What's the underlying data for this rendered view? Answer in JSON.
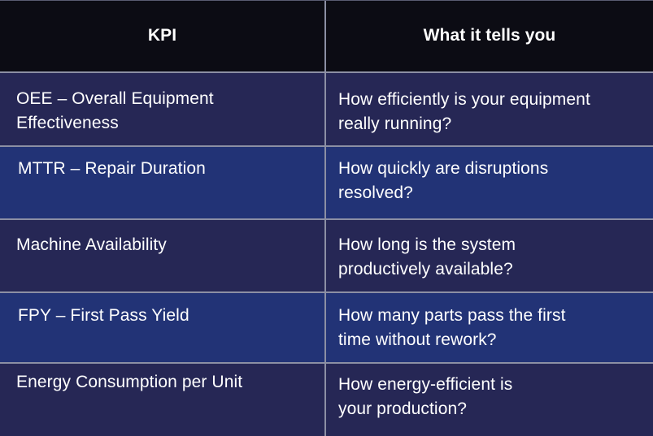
{
  "table": {
    "headers": [
      "KPI",
      "What it tells you"
    ],
    "rows": [
      [
        "OEE – Overall Equipment\nEffectiveness",
        "How efficiently is your equipment\nreally running?"
      ],
      [
        "MTTR – Repair Duration",
        "How quickly are disruptions\nresolved?"
      ],
      [
        "Machine Availability",
        "How long is the system\nproductively available?"
      ],
      [
        "FPY – First Pass Yield",
        "How many parts pass the first\ntime without rework?"
      ],
      [
        "Energy Consumption per Unit",
        "How energy-efficient is\nyour production?"
      ]
    ]
  },
  "colors": {
    "header_bg": "#0c0c14",
    "row_dark": "#262755",
    "row_blue": "#223376",
    "border": "#8c8fa4",
    "text": "#ffffff"
  }
}
